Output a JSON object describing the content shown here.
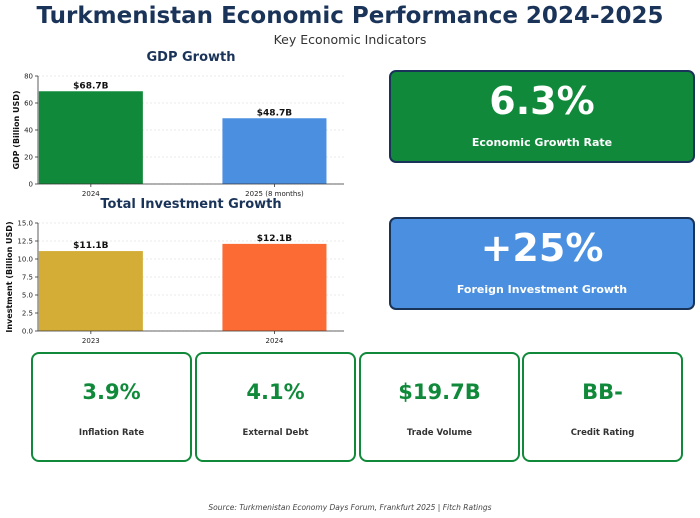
{
  "header": {
    "title": "Turkmenistan Economic Performance 2024-2025",
    "subtitle": "Key Economic Indicators"
  },
  "chart_data": [
    {
      "type": "bar",
      "title": "GDP Growth",
      "categories": [
        "2024",
        "2025 (8 months)"
      ],
      "values": [
        68.7,
        48.7
      ],
      "value_labels": [
        "$68.7B",
        "$48.7B"
      ],
      "colors": [
        "#108a3a",
        "#4a8fe0"
      ],
      "xlabel": "",
      "ylabel": "GDP (Billion USD)",
      "ylim": [
        0,
        80
      ],
      "yticks": [
        "0",
        "20",
        "40",
        "60",
        "80"
      ],
      "grid": true
    },
    {
      "type": "bar",
      "title": "Total Investment Growth",
      "categories": [
        "2023",
        "2024"
      ],
      "values": [
        11.1,
        12.1
      ],
      "value_labels": [
        "$11.1B",
        "$12.1B"
      ],
      "colors": [
        "#d4ad36",
        "#fd6b34"
      ],
      "xlabel": "",
      "ylabel": "Investment (Billion USD)",
      "ylim": [
        0,
        15
      ],
      "yticks": [
        "0.0",
        "2.5",
        "5.0",
        "7.5",
        "10.0",
        "12.5",
        "15.0"
      ],
      "grid": true
    }
  ],
  "highlights": [
    {
      "value": "6.3%",
      "label": "Economic Growth Rate",
      "color": "#108a3a"
    },
    {
      "value": "+25%",
      "label": "Foreign Investment Growth",
      "color": "#4a8fe0"
    }
  ],
  "indicators": [
    {
      "value": "3.9%",
      "label": "Inflation Rate"
    },
    {
      "value": "4.1%",
      "label": "External Debt"
    },
    {
      "value": "$19.7B",
      "label": "Trade Volume"
    },
    {
      "value": "BB-",
      "label": "Credit Rating"
    }
  ],
  "footer": {
    "source": "Source: Turkmenistan Economy Days Forum, Frankfurt 2025 | Fitch Ratings"
  }
}
